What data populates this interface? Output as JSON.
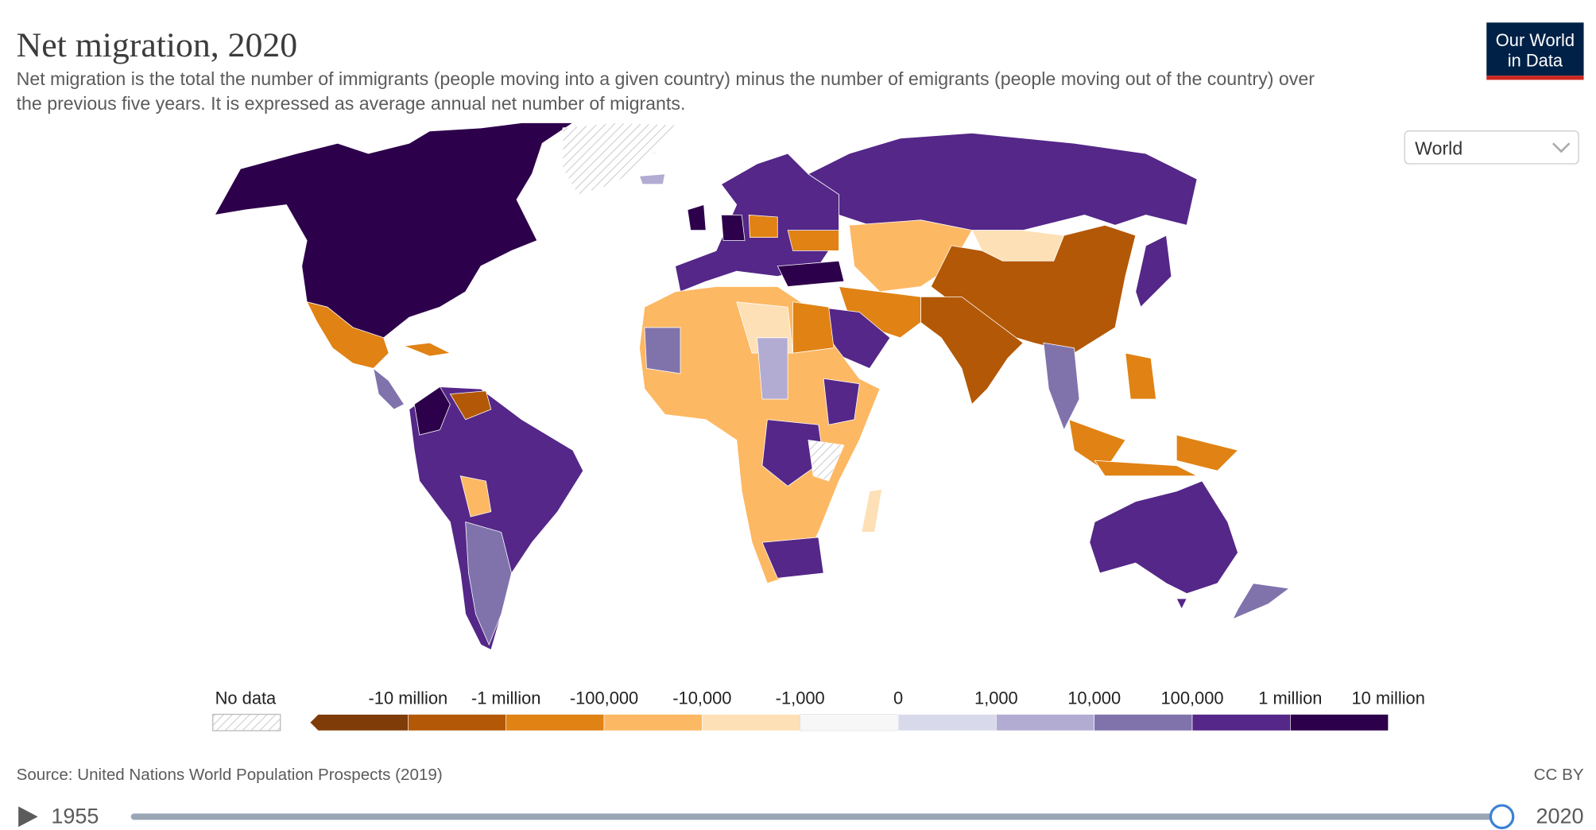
{
  "header": {
    "title": "Net migration, 2020",
    "subtitle": [
      "Net migration is the total the number of immigrants (people moving into a given country) minus the number of emigrants (people moving out of the country) over",
      "the previous five years. It is expressed as average annual net number of migrants."
    ],
    "logo": [
      "Our World",
      "in Data"
    ]
  },
  "selector": "World",
  "legend": {
    "no_data": "No data",
    "labels": [
      "-10 million",
      "-1 million",
      "-100,000",
      "-10,000",
      "-1,000",
      "0",
      "1,000",
      "10,000",
      "100,000",
      "1 million",
      "10 million"
    ],
    "colors": [
      "#7f3b08",
      "#b35806",
      "#e08214",
      "#fdb863",
      "#fee0b6",
      "#f7f7f7",
      "#d8daeb",
      "#b2abd2",
      "#8073ac",
      "#542788",
      "#2d004b"
    ]
  },
  "footer": {
    "source": "Source: United Nations World Population Prospects (2019)",
    "license": "CC BY"
  },
  "timeline": {
    "start": 1955,
    "end": 2020
  }
}
